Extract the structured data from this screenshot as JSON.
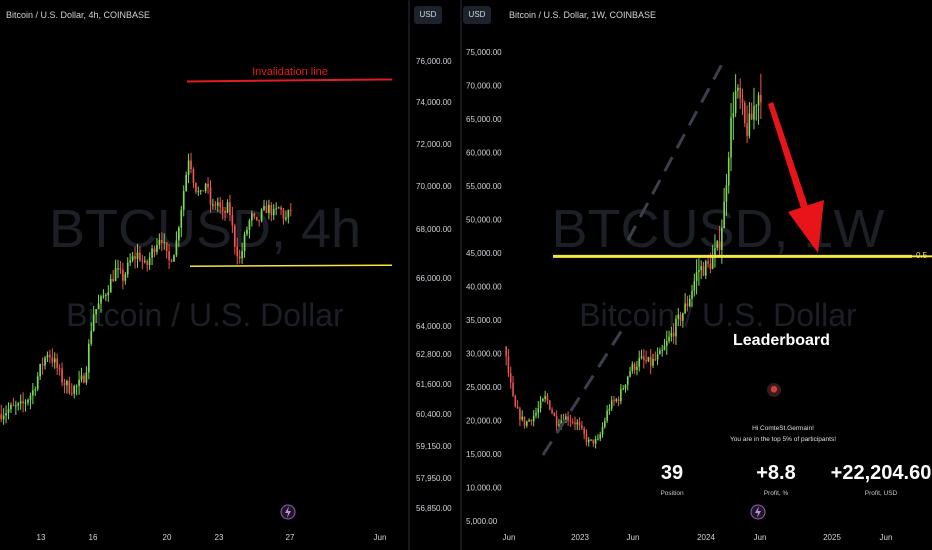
{
  "left_panel": {
    "title": "Bitcoin / U.S. Dollar, 4h, COINBASE",
    "currency_button": "USD",
    "watermark_symbol": "BTCUSD, 4h",
    "watermark_name": "Bitcoin / U.S. Dollar",
    "annotation": "Invalidation line"
  },
  "right_panel": {
    "title": "Bitcoin / U.S. Dollar, 1W, COINBASE",
    "currency_button": "USD",
    "watermark_symbol": "BTCUSD, 1W",
    "watermark_name": "Bitcoin / U.S. Dollar",
    "fib_label": "0.5"
  },
  "leaderboard": {
    "title": "Leaderboard",
    "greeting": "Hi ComteSt.Germain!",
    "rank_text": "You are in the top 5% of participants!",
    "position_value": "39",
    "position_label": "Position",
    "profit_pct_value": "+8.8",
    "profit_pct_label": "Profit, %",
    "profit_usd_value": "+22,204.60",
    "profit_usd_label": "Profit, USD"
  },
  "colors": {
    "up": "#26a69a",
    "down": "#ef5350",
    "up_bright": "#7ed956",
    "invalidation_line": "#e01e1e",
    "support_line": "#f5e642",
    "fib_line": "#f5e642",
    "arrow": "#e8141a",
    "dashed_trend": "#3a3f4b"
  },
  "chart_data": [
    {
      "type": "line",
      "title": "Bitcoin / U.S. Dollar, 4h, COINBASE",
      "interval": "4h",
      "exchange": "COINBASE",
      "y_axis_ticks": [
        76000,
        74000,
        72000,
        70000,
        68000,
        66000,
        64000,
        62800,
        61600,
        60400,
        59150,
        57950,
        56850
      ],
      "y_axis_tick_labels": [
        "76,000.00",
        "74,000.00",
        "72,000.00",
        "70,000.00",
        "68,000.00",
        "66,000.00",
        "64,000.00",
        "62,800.00",
        "61,600.00",
        "60,400.00",
        "59,150.00",
        "57,950.00",
        "56,850.00"
      ],
      "x_axis_labels": [
        "13",
        "16",
        "20",
        "23",
        "27",
        "Jun"
      ],
      "close_path": [
        {
          "t": 0,
          "c": 60400
        },
        {
          "t": 6,
          "c": 60600
        },
        {
          "t": 12,
          "c": 60700
        },
        {
          "t": 18,
          "c": 61300
        },
        {
          "t": 22,
          "c": 62200
        },
        {
          "t": 26,
          "c": 62900
        },
        {
          "t": 30,
          "c": 62400
        },
        {
          "t": 34,
          "c": 61700
        },
        {
          "t": 38,
          "c": 61400
        },
        {
          "t": 42,
          "c": 61500
        },
        {
          "t": 46,
          "c": 62000
        },
        {
          "t": 50,
          "c": 64500
        },
        {
          "t": 54,
          "c": 65000
        },
        {
          "t": 58,
          "c": 65600
        },
        {
          "t": 62,
          "c": 66300
        },
        {
          "t": 66,
          "c": 66000
        },
        {
          "t": 70,
          "c": 66700
        },
        {
          "t": 74,
          "c": 67000
        },
        {
          "t": 78,
          "c": 66400
        },
        {
          "t": 82,
          "c": 67200
        },
        {
          "t": 86,
          "c": 67800
        },
        {
          "t": 90,
          "c": 66600
        },
        {
          "t": 94,
          "c": 67300
        },
        {
          "t": 98,
          "c": 69700
        },
        {
          "t": 101,
          "c": 71500
        },
        {
          "t": 104,
          "c": 70000
        },
        {
          "t": 107,
          "c": 69500
        },
        {
          "t": 110,
          "c": 70200
        },
        {
          "t": 113,
          "c": 68900
        },
        {
          "t": 116,
          "c": 69300
        },
        {
          "t": 119,
          "c": 68600
        },
        {
          "t": 122,
          "c": 69100
        },
        {
          "t": 125,
          "c": 67500
        },
        {
          "t": 128,
          "c": 66700
        },
        {
          "t": 131,
          "c": 67800
        },
        {
          "t": 134,
          "c": 68600
        },
        {
          "t": 137,
          "c": 68200
        },
        {
          "t": 140,
          "c": 68800
        },
        {
          "t": 143,
          "c": 69000
        },
        {
          "t": 146,
          "c": 68700
        },
        {
          "t": 149,
          "c": 69000
        },
        {
          "t": 152,
          "c": 68400
        },
        {
          "t": 155,
          "c": 68900
        }
      ],
      "invalidation_line": 75100,
      "support_line": 66500
    },
    {
      "type": "line",
      "title": "Bitcoin / U.S. Dollar, 1W, COINBASE",
      "interval": "1W",
      "exchange": "COINBASE",
      "y_axis_ticks": [
        75000,
        70000,
        65000,
        60000,
        55000,
        50000,
        45000,
        40000,
        35000,
        30000,
        25000,
        20000,
        15000,
        10000,
        5000
      ],
      "y_axis_tick_labels": [
        "75,000.00",
        "70,000.00",
        "65,000.00",
        "60,000.00",
        "55,000.00",
        "50,000.00",
        "45,000.00",
        "40,000.00",
        "35,000.00",
        "30,000.00",
        "25,000.00",
        "20,000.00",
        "15,000.00",
        "10,000.00",
        "5,000.00"
      ],
      "x_axis_labels": [
        "Jun",
        "2023",
        "Jun",
        "2024",
        "Jun",
        "2025",
        "Jun"
      ],
      "close_path": [
        {
          "t": 0,
          "c": 31000
        },
        {
          "t": 4,
          "c": 22000
        },
        {
          "t": 8,
          "c": 19500
        },
        {
          "t": 12,
          "c": 21000
        },
        {
          "t": 16,
          "c": 23500
        },
        {
          "t": 20,
          "c": 19800
        },
        {
          "t": 24,
          "c": 20500
        },
        {
          "t": 28,
          "c": 19500
        },
        {
          "t": 32,
          "c": 16800
        },
        {
          "t": 36,
          "c": 16900
        },
        {
          "t": 40,
          "c": 22000
        },
        {
          "t": 44,
          "c": 23500
        },
        {
          "t": 48,
          "c": 27500
        },
        {
          "t": 52,
          "c": 29000
        },
        {
          "t": 56,
          "c": 28500
        },
        {
          "t": 60,
          "c": 29800
        },
        {
          "t": 66,
          "c": 34500
        },
        {
          "t": 70,
          "c": 37500
        },
        {
          "t": 74,
          "c": 42500
        },
        {
          "t": 78,
          "c": 43000
        },
        {
          "t": 82,
          "c": 46000
        },
        {
          "t": 84,
          "c": 52000
        },
        {
          "t": 86,
          "c": 62000
        },
        {
          "t": 88,
          "c": 69000
        },
        {
          "t": 90,
          "c": 67500
        },
        {
          "t": 92,
          "c": 63500
        },
        {
          "t": 94,
          "c": 64000
        },
        {
          "t": 96,
          "c": 68000
        },
        {
          "t": 98,
          "c": 69500
        }
      ],
      "fib_level": {
        "label": "0.5",
        "value": 44500
      },
      "arrow_target": 45000
    }
  ]
}
